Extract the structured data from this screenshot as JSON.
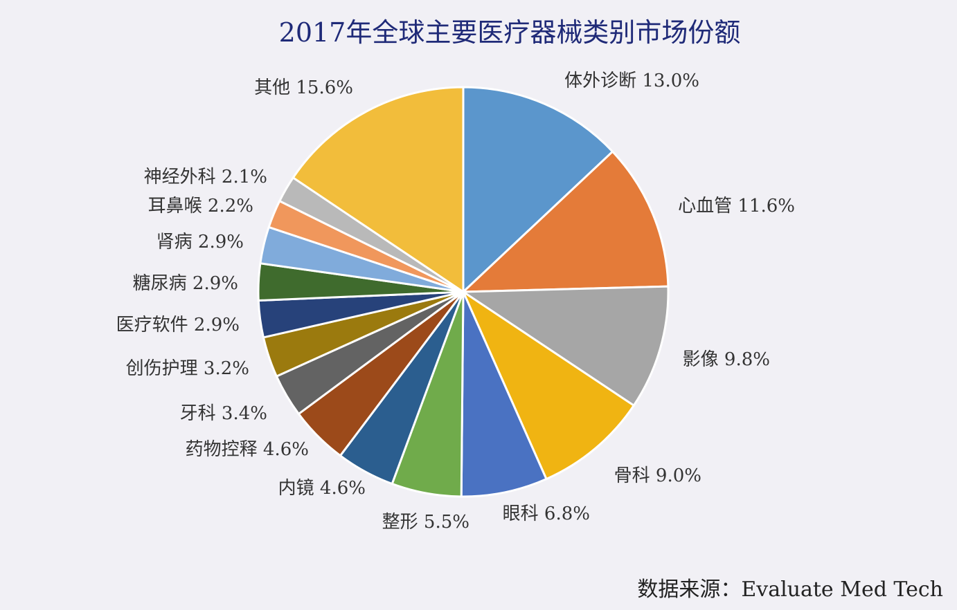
{
  "chart_data": {
    "type": "pie",
    "title": "2017年全球主要医疗器械类别市场份额",
    "source": "数据来源：Evaluate Med Tech",
    "unit": "%",
    "start_angle_deg": 0,
    "direction": "clockwise",
    "slices": [
      {
        "label": "体外诊断",
        "value": 13.0,
        "display": "13.0%",
        "color": "#5b96cc"
      },
      {
        "label": "心血管",
        "value": 11.6,
        "display": "11.6%",
        "color": "#e47b39"
      },
      {
        "label": "影像",
        "value": 9.8,
        "display": "9.8%",
        "color": "#a6a6a6"
      },
      {
        "label": "骨科",
        "value": 9.0,
        "display": "9.0%",
        "color": "#f0b412"
      },
      {
        "label": "眼科",
        "value": 6.8,
        "display": "6.8%",
        "color": "#4a72c2"
      },
      {
        "label": "整形",
        "value": 5.5,
        "display": "5.5%",
        "color": "#70ab4b"
      },
      {
        "label": "内镜",
        "value": 4.6,
        "display": "4.6%",
        "color": "#2b5e8f"
      },
      {
        "label": "药物控释",
        "value": 4.6,
        "display": "4.6%",
        "color": "#9c4a1a"
      },
      {
        "label": "牙科",
        "value": 3.4,
        "display": "3.4%",
        "color": "#636363"
      },
      {
        "label": "创伤护理",
        "value": 3.2,
        "display": "3.2%",
        "color": "#9b7a0e"
      },
      {
        "label": "医疗软件",
        "value": 2.9,
        "display": "2.9%",
        "color": "#27427a"
      },
      {
        "label": "糖尿病",
        "value": 2.9,
        "display": "2.9%",
        "color": "#3f6b2d"
      },
      {
        "label": "肾病",
        "value": 2.9,
        "display": "2.9%",
        "color": "#80abdb"
      },
      {
        "label": "耳鼻喉",
        "value": 2.2,
        "display": "2.2%",
        "color": "#f0975c"
      },
      {
        "label": "神经外科",
        "value": 2.1,
        "display": "2.1%",
        "color": "#b9b9b9"
      },
      {
        "label": "其他",
        "value": 15.6,
        "display": "15.6%",
        "color": "#f2bd3b"
      }
    ]
  }
}
